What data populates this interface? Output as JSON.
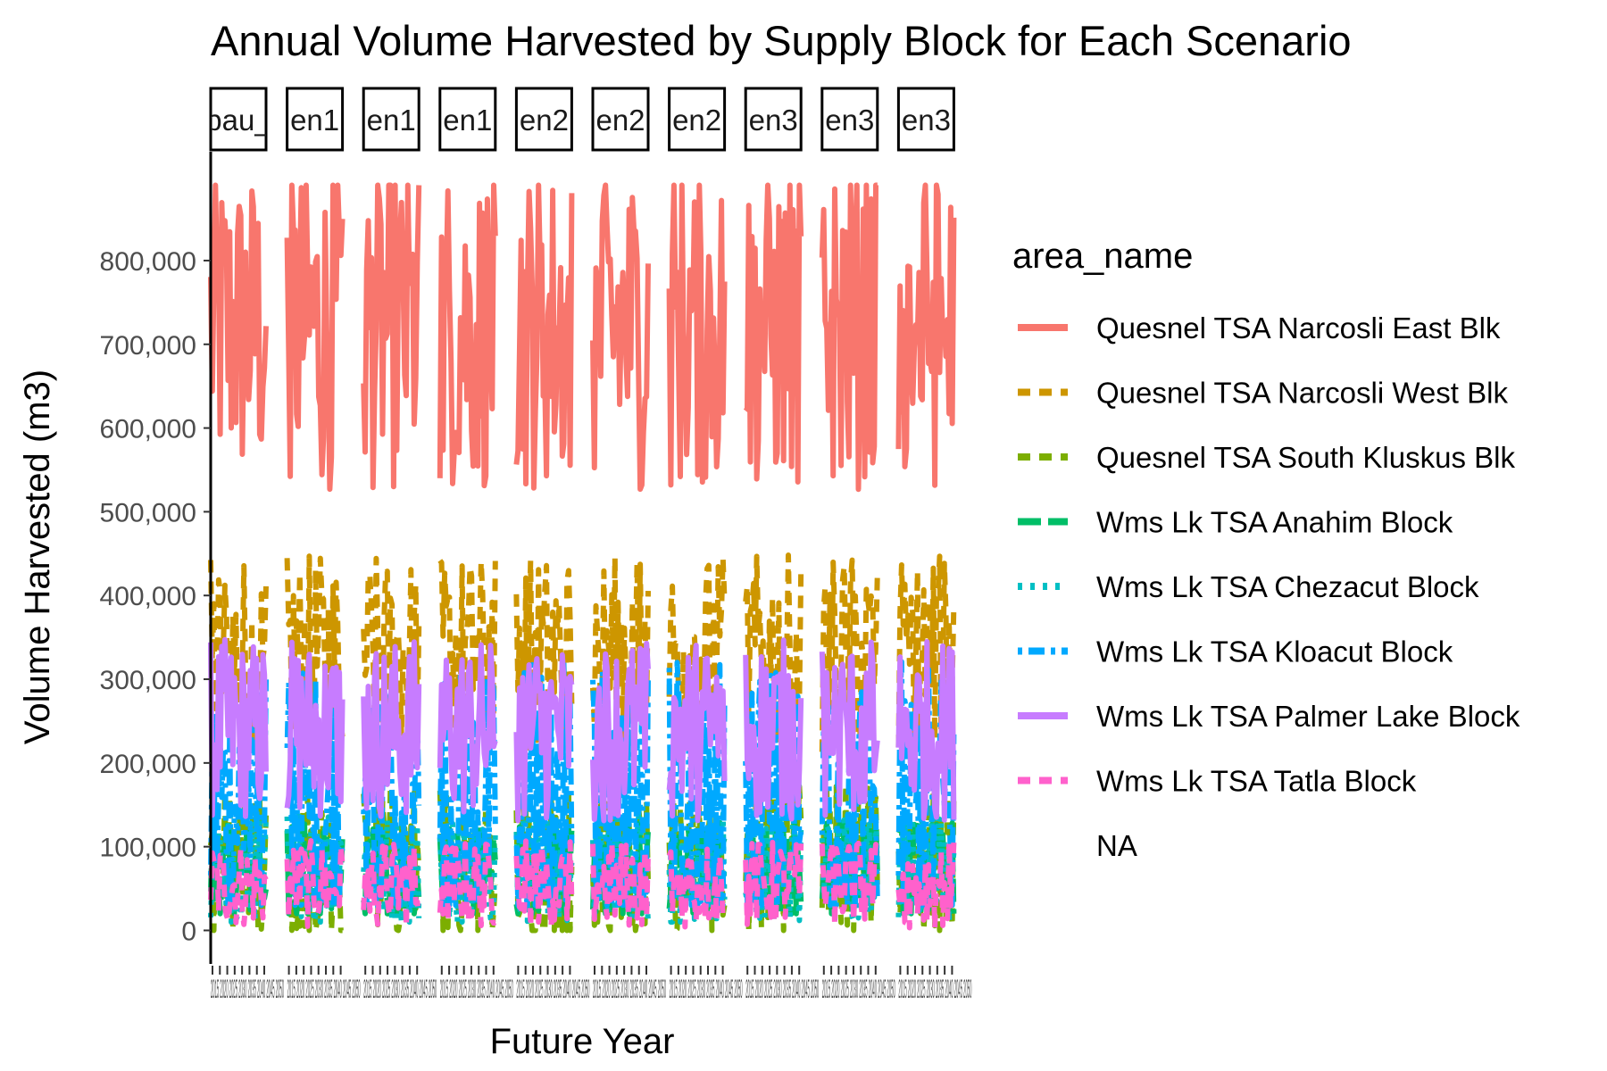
{
  "chart_data": {
    "type": "line",
    "title": "Annual Volume Harvested by Supply Block for Each Scenario",
    "xlabel": "Future Year",
    "ylabel": "Volume Harvested (m3)",
    "ylim": [
      -40000,
      930000
    ],
    "y_ticks": [
      0,
      100000,
      200000,
      300000,
      400000,
      500000,
      600000,
      700000,
      800000
    ],
    "y_tick_labels": [
      "0",
      "100,000",
      "200,000",
      "300,000",
      "400,000",
      "500,000",
      "600,000",
      "700,000",
      "800,000"
    ],
    "x_tick_text": "2015 2020 2025 2030 2035 2040 2045 2050",
    "panels": [
      "bau_",
      "en1",
      "en1",
      "en1",
      "en2",
      "en2",
      "en2",
      "en3",
      "en3",
      "en3"
    ],
    "grid": false,
    "legend": {
      "title": "area_name",
      "position": "right",
      "entries": [
        {
          "name": "Quesnel TSA Narcosli East Blk",
          "color": "#F8766D",
          "dash": "solid"
        },
        {
          "name": "Quesnel TSA Narcosli West Blk",
          "color": "#CD9600",
          "dash": "dashed"
        },
        {
          "name": "Quesnel TSA South Kluskus Blk",
          "color": "#7CAE00",
          "dash": "dashed"
        },
        {
          "name": "Wms Lk TSA Anahim Block",
          "color": "#00BE67",
          "dash": "longdash"
        },
        {
          "name": "Wms Lk TSA Chezacut Block",
          "color": "#00BFC4",
          "dash": "dotted"
        },
        {
          "name": "Wms Lk TSA Kloacut Block",
          "color": "#00A9FF",
          "dash": "dotdash"
        },
        {
          "name": "Wms Lk TSA Palmer Lake Block",
          "color": "#C77CFF",
          "dash": "solid"
        },
        {
          "name": "Wms Lk TSA Tatla Block",
          "color": "#FF61CC",
          "dash": "dashed"
        },
        {
          "name": "NA",
          "color": "#ffffff",
          "dash": "solid"
        }
      ]
    },
    "series": [
      {
        "name": "Quesnel TSA Narcosli East Blk",
        "range": [
          480000,
          890000
        ],
        "center": 720000
      },
      {
        "name": "Quesnel TSA Narcosli West Blk",
        "range": [
          200000,
          450000
        ],
        "center": 330000
      },
      {
        "name": "Quesnel TSA South Kluskus Blk",
        "range": [
          0,
          200000
        ],
        "center": 80000
      },
      {
        "name": "Wms Lk TSA Anahim Block",
        "range": [
          20000,
          150000
        ],
        "center": 70000
      },
      {
        "name": "Wms Lk TSA Chezacut Block",
        "range": [
          10000,
          160000
        ],
        "center": 70000
      },
      {
        "name": "Wms Lk TSA Kloacut Block",
        "range": [
          30000,
          390000
        ],
        "center": 150000
      },
      {
        "name": "Wms Lk TSA Palmer Lake Block",
        "range": [
          130000,
          360000
        ],
        "center": 240000
      },
      {
        "name": "Wms Lk TSA Tatla Block",
        "range": [
          0,
          110000
        ],
        "center": 55000
      }
    ]
  }
}
